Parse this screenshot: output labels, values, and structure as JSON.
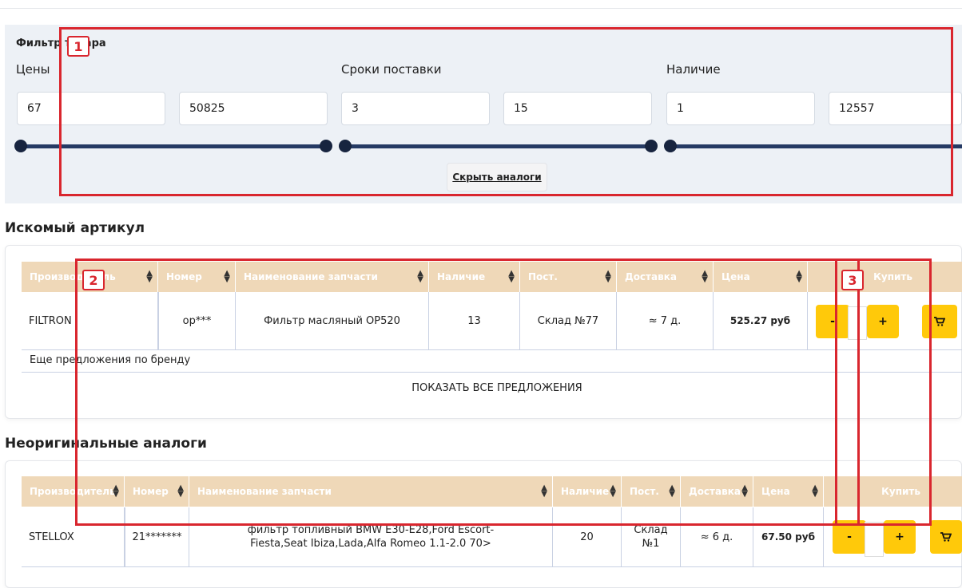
{
  "filter": {
    "title": "Фильтр товара",
    "groups": [
      {
        "label": "Цены",
        "min": "67",
        "max": "50825"
      },
      {
        "label": "Сроки поставки",
        "min": "3",
        "max": "15"
      },
      {
        "label": "Наличие",
        "min": "1",
        "max": "12557"
      }
    ],
    "hide_analogs_label": "Скрыть аналоги"
  },
  "sought": {
    "title": "Искомый артикул",
    "columns": [
      "Производитель",
      "Номер",
      "Наименование запчасти",
      "Наличие",
      "Пост.",
      "Доставка",
      "Цена",
      "Купить"
    ],
    "row": {
      "brand": "FILTRON",
      "number": "op***",
      "name": "Фильтр масляный OP520",
      "stock": "13",
      "supplier": "Склад №77",
      "delivery": "≈ 7 д.",
      "price": "525.27 руб"
    },
    "more_text": "Еще предложения по бренду",
    "show_all_label": "ПОКАЗАТЬ ВСЕ ПРЕДЛОЖЕНИЯ"
  },
  "analogs": {
    "title": "Неоригинальные аналоги",
    "columns": [
      "Производитель",
      "Номер",
      "Наименование запчасти",
      "Наличие",
      "Пост.",
      "Доставка",
      "Цена",
      "Купить"
    ],
    "row": {
      "brand": "STELLOX",
      "number": "21*******",
      "name": "фильтр топливный BMW E30-E28,Ford Escort-Fiesta,Seat Ibiza,Lada,Alfa Romeo 1.1-2.0 70>",
      "stock": "20",
      "supplier": "Склад №1",
      "delivery": "≈ 6 д.",
      "price": "67.50 руб"
    }
  },
  "buttons": {
    "minus": "-",
    "plus": "+"
  },
  "annotations": [
    "1",
    "2",
    "3"
  ],
  "colors": {
    "header_bg": "#efd8b8",
    "buy_button": "#ffc90a",
    "slider": "#253a64",
    "annotation": "#d9262e"
  }
}
